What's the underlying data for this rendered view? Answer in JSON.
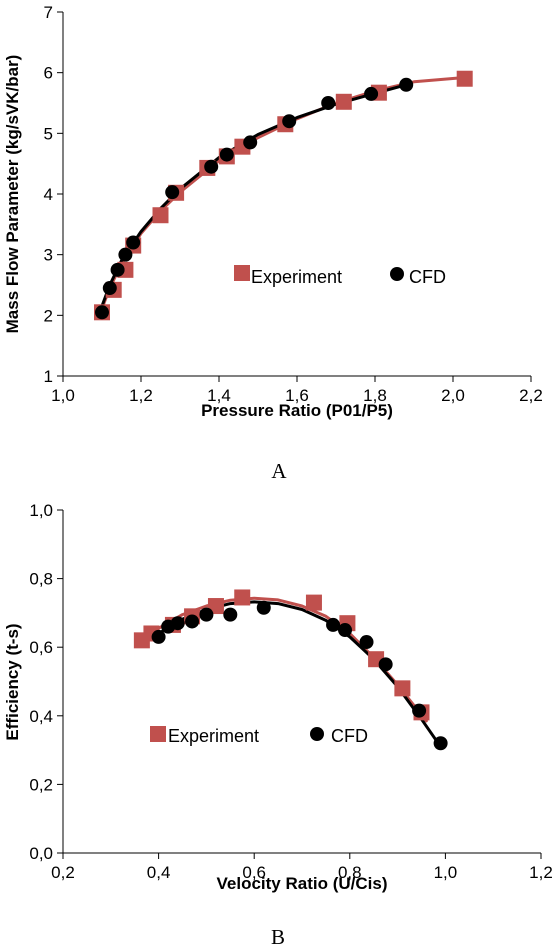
{
  "chart_data": [
    {
      "type": "scatter",
      "xlabel": "Pressure Ratio (P01/P5)",
      "ylabel": "Mass Flow Parameter (kg/sVK/bar)",
      "xlim": [
        1.0,
        2.2
      ],
      "ylim": [
        1,
        7
      ],
      "xticks": [
        "1,0",
        "1,2",
        "1,4",
        "1,6",
        "1,8",
        "2,0",
        "2,2"
      ],
      "yticks": [
        "1",
        "2",
        "3",
        "4",
        "5",
        "6",
        "7"
      ],
      "caption": "A",
      "legend_position": "center-right",
      "series": [
        {
          "name": "Experiment",
          "marker": "square",
          "color": "#c0504d",
          "x": [
            1.1,
            1.13,
            1.16,
            1.18,
            1.25,
            1.29,
            1.37,
            1.42,
            1.46,
            1.57,
            1.72,
            1.81,
            2.03
          ],
          "y": [
            2.05,
            2.42,
            2.75,
            3.15,
            3.65,
            4.02,
            4.43,
            4.62,
            4.78,
            5.15,
            5.52,
            5.67,
            5.9
          ]
        },
        {
          "name": "CFD",
          "marker": "circle",
          "color": "#000000",
          "x": [
            1.1,
            1.12,
            1.14,
            1.16,
            1.18,
            1.28,
            1.38,
            1.42,
            1.48,
            1.58,
            1.68,
            1.79,
            1.88
          ],
          "y": [
            2.05,
            2.45,
            2.75,
            3.0,
            3.2,
            4.03,
            4.45,
            4.65,
            4.85,
            5.2,
            5.5,
            5.65,
            5.8
          ]
        }
      ],
      "trendlines": [
        {
          "series": "Experiment",
          "color": "#c0504d",
          "x": [
            1.09,
            1.12,
            1.15,
            1.2,
            1.25,
            1.3,
            1.4,
            1.5,
            1.6,
            1.7,
            1.8,
            1.9,
            2.03
          ],
          "y": [
            1.95,
            2.45,
            2.85,
            3.35,
            3.72,
            4.03,
            4.55,
            4.93,
            5.24,
            5.5,
            5.7,
            5.85,
            5.92
          ]
        },
        {
          "series": "CFD",
          "color": "#000000",
          "x": [
            1.09,
            1.12,
            1.15,
            1.2,
            1.25,
            1.3,
            1.4,
            1.5,
            1.6,
            1.7,
            1.8,
            1.88
          ],
          "y": [
            1.98,
            2.5,
            2.9,
            3.38,
            3.76,
            4.08,
            4.6,
            4.98,
            5.26,
            5.48,
            5.66,
            5.8
          ]
        }
      ]
    },
    {
      "type": "scatter",
      "xlabel": "Velocity Ratio (U/Cis)",
      "ylabel": "Efficiency (t-s)",
      "xlim": [
        0.2,
        1.2
      ],
      "ylim": [
        0.0,
        1.0
      ],
      "xticks": [
        "0,2",
        "0,4",
        "0,6",
        "0,8",
        "1,0",
        "1,2"
      ],
      "yticks": [
        "0,0",
        "0,2",
        "0,4",
        "0,6",
        "0,8",
        "1,0"
      ],
      "caption": "B",
      "legend_position": "lower-left",
      "series": [
        {
          "name": "Experiment",
          "marker": "square",
          "color": "#c0504d",
          "x": [
            0.365,
            0.385,
            0.43,
            0.47,
            0.52,
            0.575,
            0.725,
            0.795,
            0.855,
            0.91,
            0.95
          ],
          "y": [
            0.62,
            0.64,
            0.665,
            0.69,
            0.72,
            0.745,
            0.73,
            0.67,
            0.565,
            0.48,
            0.41
          ],
          "note": ""
        },
        {
          "name": "CFD",
          "marker": "circle",
          "color": "#000000",
          "x": [
            0.4,
            0.42,
            0.44,
            0.47,
            0.5,
            0.55,
            0.62,
            0.765,
            0.79,
            0.835,
            0.875,
            0.945,
            0.99
          ],
          "y": [
            0.63,
            0.66,
            0.67,
            0.675,
            0.695,
            0.695,
            0.715,
            0.665,
            0.65,
            0.615,
            0.55,
            0.415,
            0.32
          ]
        }
      ],
      "trendlines": [
        {
          "series": "Experiment",
          "color": "#c0504d",
          "x": [
            0.37,
            0.4,
            0.45,
            0.5,
            0.55,
            0.6,
            0.65,
            0.7,
            0.75,
            0.8,
            0.85,
            0.9,
            0.96
          ],
          "y": [
            0.625,
            0.655,
            0.695,
            0.72,
            0.737,
            0.743,
            0.738,
            0.72,
            0.69,
            0.64,
            0.57,
            0.49,
            0.385
          ]
        },
        {
          "series": "CFD",
          "color": "#000000",
          "x": [
            0.4,
            0.45,
            0.5,
            0.55,
            0.6,
            0.65,
            0.7,
            0.75,
            0.8,
            0.85,
            0.9,
            0.95,
            0.99
          ],
          "y": [
            0.64,
            0.682,
            0.71,
            0.727,
            0.732,
            0.727,
            0.71,
            0.678,
            0.63,
            0.565,
            0.485,
            0.39,
            0.31
          ]
        }
      ]
    }
  ]
}
